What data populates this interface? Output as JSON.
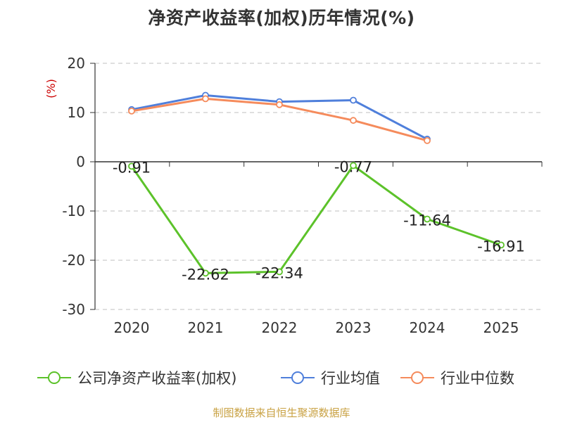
{
  "chart_data": {
    "type": "line",
    "title": "净资产收益率(加权)历年情况(%)",
    "ylabel": "(%)",
    "xlabel": "",
    "ylim": [
      -30,
      20
    ],
    "yticks": [
      20,
      10,
      0,
      -10,
      -20,
      -30
    ],
    "categories": [
      "2020",
      "2021",
      "2022",
      "2023",
      "2024",
      "2025"
    ],
    "grid": true,
    "series": [
      {
        "name": "公司净资产收益率(加权)",
        "color": "#5cc22a",
        "values": [
          -0.91,
          -22.62,
          -22.34,
          -0.77,
          -11.64,
          -16.91
        ],
        "labels": [
          "-0.91",
          "-22.62",
          "-22.34",
          "-0.77",
          "-11.64",
          "-16.91"
        ]
      },
      {
        "name": "行业均值",
        "color": "#4f7fdb",
        "values": [
          10.6,
          13.5,
          12.2,
          12.5,
          4.6,
          null
        ]
      },
      {
        "name": "行业中位数",
        "color": "#f58b5c",
        "values": [
          10.3,
          12.8,
          11.6,
          8.4,
          4.3,
          null
        ]
      }
    ]
  },
  "legend": {
    "items": [
      {
        "label": "公司净资产收益率(加权)",
        "color": "#5cc22a"
      },
      {
        "label": "行业均值",
        "color": "#4f7fdb"
      },
      {
        "label": "行业中位数",
        "color": "#f58b5c"
      }
    ]
  },
  "footer": {
    "source": "制图数据来自恒生聚源数据库"
  },
  "colors": {
    "ylabel": "#cc0000",
    "axis": "#333333",
    "grid": "#cccccc",
    "text": "#333333"
  }
}
